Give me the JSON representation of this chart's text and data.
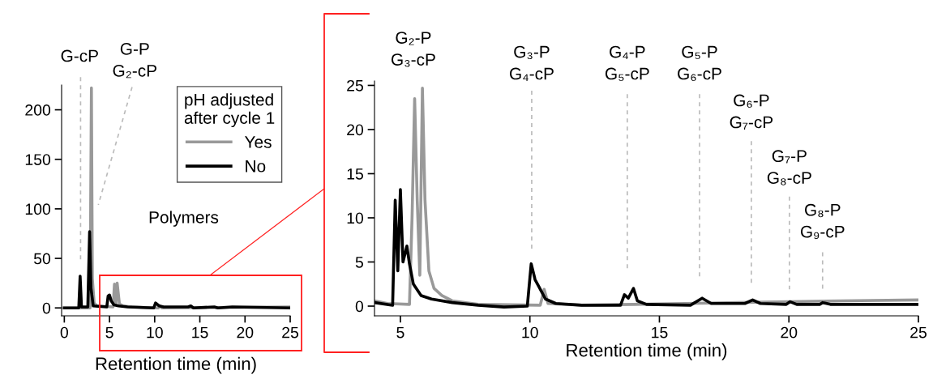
{
  "chart_data": [
    {
      "type": "line",
      "xlabel": "Retention time (min)",
      "legend_title": "pH adjusted\nafter cycle 1",
      "legend": "top right",
      "grid": false,
      "marker": "none",
      "line_style": "solid",
      "xlim": [
        -0.3,
        25
      ],
      "xticks": [
        0,
        5,
        10,
        15,
        20,
        25
      ],
      "ylim": [
        -8,
        225
      ],
      "yticks": [
        0,
        50,
        100,
        150,
        200
      ],
      "annotations": [
        "G-cP",
        "G-P\nG₂-cP",
        "Polymers"
      ],
      "series": [
        {
          "name": "Yes",
          "color": "#999999",
          "x": [
            0,
            2.85,
            3.0,
            3.1,
            3.3,
            3.6,
            5.4,
            5.55,
            5.7,
            5.85,
            6.1,
            6.5,
            7.5,
            10.4,
            10.6,
            10.8,
            25
          ],
          "values": [
            0,
            0,
            222,
            30,
            5,
            2,
            1,
            24,
            4,
            25,
            4,
            2,
            1,
            0,
            2,
            0,
            1
          ]
        },
        {
          "name": "No",
          "color": "#000000",
          "x": [
            0,
            1.6,
            1.75,
            1.9,
            2.6,
            2.8,
            2.95,
            3.2,
            4.7,
            4.85,
            5.0,
            5.2,
            5.5,
            6,
            7,
            9.9,
            10.1,
            10.5,
            11,
            13.7,
            14.0,
            14.3,
            16.6,
            17,
            18.6,
            25
          ],
          "values": [
            0,
            0,
            32,
            1,
            1,
            77,
            20,
            2,
            1,
            12,
            13,
            7,
            3,
            2,
            1,
            0,
            5,
            2,
            1,
            1,
            2,
            0,
            1,
            0,
            1,
            0
          ]
        }
      ]
    },
    {
      "type": "line",
      "xlabel": "Retention time (min)",
      "grid": false,
      "marker": "none",
      "line_style": "solid",
      "xlim": [
        4,
        25
      ],
      "xticks": [
        5,
        10,
        15,
        20,
        25
      ],
      "ylim": [
        -1.1,
        25.5
      ],
      "yticks": [
        0,
        5,
        10,
        15,
        20,
        25
      ],
      "annotations": [
        "G₂-P\nG₃-cP",
        "G₃-P\nG₄-cP",
        "G₄-P\nG₅-cP",
        "G₅-P\nG₆-cP",
        "G₆-P\nG₇-cP",
        "G₇-P\nG₈-cP",
        "G₈-P\nG₉-cP"
      ],
      "series": [
        {
          "color": "#999999",
          "x": [
            4,
            4.5,
            5.35,
            5.45,
            5.55,
            5.65,
            5.75,
            5.85,
            5.95,
            6.1,
            6.3,
            6.6,
            7,
            8,
            10.4,
            10.55,
            10.7,
            12,
            14,
            16,
            18,
            20,
            22,
            25
          ],
          "values": [
            0.6,
            0.3,
            0.2,
            10,
            23.5,
            12,
            3.5,
            24.7,
            12,
            4,
            2,
            1.2,
            0.6,
            0.2,
            0.1,
            1.9,
            0.3,
            0.1,
            0.2,
            0.3,
            0.4,
            0.5,
            0.6,
            0.7
          ]
        },
        {
          "color": "#000000",
          "x": [
            4,
            4.7,
            4.8,
            4.9,
            5.0,
            5.1,
            5.25,
            5.35,
            5.5,
            5.8,
            6.2,
            7,
            8,
            9,
            9.9,
            10.05,
            10.2,
            10.35,
            10.6,
            11,
            12,
            13.5,
            13.65,
            13.8,
            14.0,
            14.15,
            14.5,
            16.2,
            16.65,
            17.0,
            18.3,
            18.6,
            18.9,
            19.9,
            20.05,
            20.3,
            21.2,
            21.3,
            21.6,
            25
          ],
          "values": [
            0.4,
            0.1,
            12,
            4,
            13.2,
            5,
            6.8,
            4.8,
            2.5,
            1.2,
            0.8,
            0.4,
            0.1,
            -0.1,
            0,
            4.8,
            3,
            2.2,
            0.8,
            0.3,
            0.1,
            0.1,
            1.3,
            0.9,
            2.0,
            0.6,
            0.2,
            0.1,
            0.9,
            0.3,
            0.3,
            0.7,
            0.3,
            0.2,
            0.5,
            0.2,
            0.2,
            0.4,
            0.2,
            0.2
          ]
        }
      ]
    }
  ]
}
